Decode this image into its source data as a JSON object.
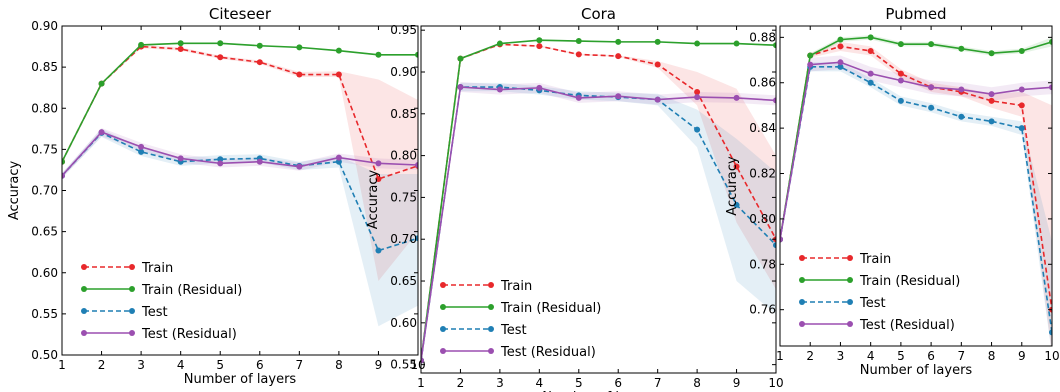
{
  "chart_data": [
    {
      "type": "line",
      "title": "Citeseer",
      "xlabel": "Number of layers",
      "ylabel": "Accuracy",
      "x": [
        1,
        2,
        3,
        4,
        5,
        6,
        7,
        8,
        9,
        10
      ],
      "xlim": [
        1,
        10
      ],
      "ylim": [
        0.5,
        0.9
      ],
      "yticks": [
        0.5,
        0.55,
        0.6,
        0.65,
        0.7,
        0.75,
        0.8,
        0.85,
        0.9
      ],
      "yticklabels": [
        "0.50",
        "0.55",
        "0.60",
        "0.65",
        "0.70",
        "0.75",
        "0.80",
        "0.85",
        "0.90"
      ],
      "legend_position": "lower-left",
      "series": [
        {
          "name": "Train",
          "color": "#e8282b",
          "dash": true,
          "values": [
            0.735,
            0.83,
            0.875,
            0.872,
            0.862,
            0.856,
            0.841,
            0.841,
            0.714,
            0.73
          ],
          "band": [
            [
              0.735,
              0.735
            ],
            [
              0.829,
              0.831
            ],
            [
              0.873,
              0.877
            ],
            [
              0.87,
              0.874
            ],
            [
              0.86,
              0.864
            ],
            [
              0.854,
              0.858
            ],
            [
              0.838,
              0.844
            ],
            [
              0.838,
              0.845
            ],
            [
              0.59,
              0.835
            ],
            [
              0.65,
              0.81
            ]
          ]
        },
        {
          "name": "Train (Residual)",
          "color": "#2ca02c",
          "dash": false,
          "values": [
            0.735,
            0.83,
            0.877,
            0.879,
            0.879,
            0.876,
            0.874,
            0.87,
            0.865,
            0.865
          ],
          "band": [
            [
              0.735,
              0.735
            ],
            [
              0.829,
              0.831
            ],
            [
              0.876,
              0.878
            ],
            [
              0.878,
              0.88
            ],
            [
              0.878,
              0.88
            ],
            [
              0.875,
              0.877
            ],
            [
              0.873,
              0.875
            ],
            [
              0.869,
              0.871
            ],
            [
              0.864,
              0.866
            ],
            [
              0.864,
              0.866
            ]
          ]
        },
        {
          "name": "Test",
          "color": "#1f7fb4",
          "dash": true,
          "values": [
            0.718,
            0.77,
            0.747,
            0.735,
            0.738,
            0.739,
            0.73,
            0.735,
            0.627,
            0.642
          ],
          "band": [
            [
              0.715,
              0.721
            ],
            [
              0.765,
              0.775
            ],
            [
              0.742,
              0.752
            ],
            [
              0.73,
              0.74
            ],
            [
              0.733,
              0.743
            ],
            [
              0.734,
              0.744
            ],
            [
              0.725,
              0.735
            ],
            [
              0.728,
              0.742
            ],
            [
              0.535,
              0.72
            ],
            [
              0.56,
              0.72
            ]
          ]
        },
        {
          "name": "Test (Residual)",
          "color": "#9b4fb0",
          "dash": false,
          "values": [
            0.718,
            0.771,
            0.753,
            0.739,
            0.733,
            0.735,
            0.729,
            0.74,
            0.733,
            0.731
          ],
          "band": [
            [
              0.715,
              0.721
            ],
            [
              0.766,
              0.776
            ],
            [
              0.748,
              0.758
            ],
            [
              0.734,
              0.744
            ],
            [
              0.728,
              0.738
            ],
            [
              0.73,
              0.74
            ],
            [
              0.724,
              0.734
            ],
            [
              0.735,
              0.745
            ],
            [
              0.727,
              0.739
            ],
            [
              0.725,
              0.737
            ]
          ]
        }
      ]
    },
    {
      "type": "line",
      "title": "Cora",
      "xlabel": "Number of layers",
      "ylabel": "Accuracy",
      "x": [
        1,
        2,
        3,
        4,
        5,
        6,
        7,
        8,
        9,
        10
      ],
      "xlim": [
        1,
        10
      ],
      "ylim": [
        0.54,
        0.955
      ],
      "yticks": [
        0.55,
        0.6,
        0.65,
        0.7,
        0.75,
        0.8,
        0.85,
        0.9,
        0.95
      ],
      "yticklabels": [
        "0.55",
        "0.60",
        "0.65",
        "0.70",
        "0.75",
        "0.80",
        "0.85",
        "0.90",
        "0.95"
      ],
      "legend_position": "lower-left",
      "series": [
        {
          "name": "Train",
          "color": "#e8282b",
          "dash": true,
          "values": [
            0.555,
            0.916,
            0.933,
            0.931,
            0.921,
            0.919,
            0.909,
            0.876,
            0.787,
            0.7
          ],
          "band": [
            [
              0.555,
              0.555
            ],
            [
              0.915,
              0.917
            ],
            [
              0.932,
              0.934
            ],
            [
              0.93,
              0.932
            ],
            [
              0.92,
              0.922
            ],
            [
              0.918,
              0.92
            ],
            [
              0.905,
              0.913
            ],
            [
              0.86,
              0.9
            ],
            [
              0.72,
              0.88
            ],
            [
              0.64,
              0.8
            ]
          ]
        },
        {
          "name": "Train (Residual)",
          "color": "#2ca02c",
          "dash": false,
          "values": [
            0.555,
            0.916,
            0.934,
            0.938,
            0.937,
            0.936,
            0.936,
            0.934,
            0.934,
            0.932
          ],
          "band": [
            [
              0.555,
              0.555
            ],
            [
              0.915,
              0.917
            ],
            [
              0.933,
              0.935
            ],
            [
              0.937,
              0.939
            ],
            [
              0.936,
              0.938
            ],
            [
              0.935,
              0.937
            ],
            [
              0.935,
              0.937
            ],
            [
              0.933,
              0.935
            ],
            [
              0.933,
              0.935
            ],
            [
              0.931,
              0.933
            ]
          ]
        },
        {
          "name": "Test",
          "color": "#1f7fb4",
          "dash": true,
          "values": [
            0.555,
            0.882,
            0.882,
            0.878,
            0.872,
            0.87,
            0.867,
            0.831,
            0.741,
            0.693
          ],
          "band": [
            [
              0.555,
              0.555
            ],
            [
              0.877,
              0.887
            ],
            [
              0.877,
              0.887
            ],
            [
              0.873,
              0.883
            ],
            [
              0.867,
              0.877
            ],
            [
              0.865,
              0.875
            ],
            [
              0.86,
              0.874
            ],
            [
              0.81,
              0.855
            ],
            [
              0.65,
              0.82
            ],
            [
              0.61,
              0.78
            ]
          ]
        },
        {
          "name": "Test (Residual)",
          "color": "#9b4fb0",
          "dash": false,
          "values": [
            0.555,
            0.882,
            0.879,
            0.881,
            0.869,
            0.871,
            0.867,
            0.87,
            0.869,
            0.866
          ],
          "band": [
            [
              0.555,
              0.555
            ],
            [
              0.876,
              0.888
            ],
            [
              0.873,
              0.885
            ],
            [
              0.875,
              0.887
            ],
            [
              0.863,
              0.875
            ],
            [
              0.865,
              0.877
            ],
            [
              0.861,
              0.873
            ],
            [
              0.864,
              0.876
            ],
            [
              0.863,
              0.875
            ],
            [
              0.86,
              0.872
            ]
          ]
        }
      ]
    },
    {
      "type": "line",
      "title": "Pubmed",
      "xlabel": "Number of layers",
      "ylabel": "Accuracy",
      "x": [
        1,
        2,
        3,
        4,
        5,
        6,
        7,
        8,
        9,
        10
      ],
      "xlim": [
        1,
        10
      ],
      "ylim": [
        0.744,
        0.885
      ],
      "yticks": [
        0.76,
        0.78,
        0.8,
        0.82,
        0.84,
        0.86,
        0.88
      ],
      "yticklabels": [
        "0.76",
        "0.78",
        "0.80",
        "0.82",
        "0.84",
        "0.86",
        "0.88"
      ],
      "legend_position": "lower-left",
      "series": [
        {
          "name": "Train",
          "color": "#e8282b",
          "dash": true,
          "values": [
            0.791,
            0.872,
            0.876,
            0.874,
            0.864,
            0.858,
            0.856,
            0.852,
            0.85,
            0.76
          ],
          "band": [
            [
              0.791,
              0.791
            ],
            [
              0.871,
              0.873
            ],
            [
              0.874,
              0.878
            ],
            [
              0.872,
              0.876
            ],
            [
              0.862,
              0.866
            ],
            [
              0.856,
              0.86
            ],
            [
              0.854,
              0.858
            ],
            [
              0.849,
              0.855
            ],
            [
              0.845,
              0.856
            ],
            [
              0.74,
              0.85
            ]
          ]
        },
        {
          "name": "Train (Residual)",
          "color": "#2ca02c",
          "dash": false,
          "values": [
            0.791,
            0.872,
            0.879,
            0.88,
            0.877,
            0.877,
            0.875,
            0.873,
            0.874,
            0.878
          ],
          "band": [
            [
              0.791,
              0.791
            ],
            [
              0.871,
              0.873
            ],
            [
              0.878,
              0.88
            ],
            [
              0.879,
              0.881
            ],
            [
              0.876,
              0.878
            ],
            [
              0.876,
              0.878
            ],
            [
              0.874,
              0.876
            ],
            [
              0.872,
              0.874
            ],
            [
              0.873,
              0.875
            ],
            [
              0.876,
              0.88
            ]
          ]
        },
        {
          "name": "Test",
          "color": "#1f7fb4",
          "dash": true,
          "values": [
            0.791,
            0.867,
            0.867,
            0.86,
            0.852,
            0.849,
            0.845,
            0.843,
            0.84,
            0.75
          ],
          "band": [
            [
              0.791,
              0.791
            ],
            [
              0.865,
              0.869
            ],
            [
              0.865,
              0.869
            ],
            [
              0.858,
              0.862
            ],
            [
              0.85,
              0.854
            ],
            [
              0.847,
              0.851
            ],
            [
              0.843,
              0.847
            ],
            [
              0.841,
              0.845
            ],
            [
              0.837,
              0.843
            ],
            [
              0.74,
              0.79
            ]
          ]
        },
        {
          "name": "Test (Residual)",
          "color": "#9b4fb0",
          "dash": false,
          "values": [
            0.791,
            0.868,
            0.869,
            0.864,
            0.861,
            0.858,
            0.857,
            0.855,
            0.857,
            0.858
          ],
          "band": [
            [
              0.791,
              0.791
            ],
            [
              0.865,
              0.871
            ],
            [
              0.866,
              0.872
            ],
            [
              0.861,
              0.867
            ],
            [
              0.858,
              0.864
            ],
            [
              0.855,
              0.861
            ],
            [
              0.854,
              0.86
            ],
            [
              0.852,
              0.858
            ],
            [
              0.854,
              0.86
            ],
            [
              0.855,
              0.861
            ]
          ]
        }
      ]
    }
  ]
}
